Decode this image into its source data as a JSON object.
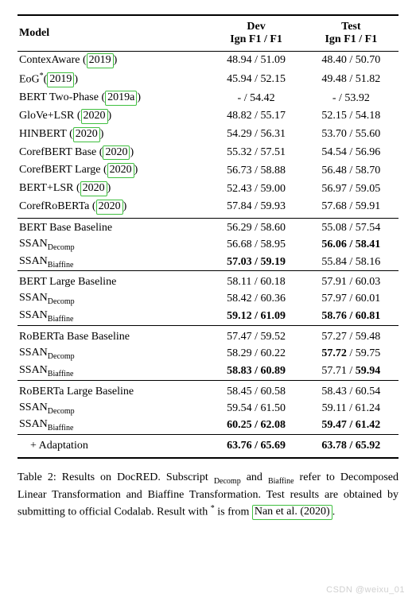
{
  "header": {
    "model": "Model",
    "dev_line1": "Dev",
    "dev_line2": "Ign F1 / F1",
    "test_line1": "Test",
    "test_line2": "Ign F1 / F1"
  },
  "section1": [
    {
      "model_pre": "ContexAware (",
      "ref": "2019",
      "model_post": ")",
      "dev": "48.94 / 51.09",
      "test": "48.40 / 50.70"
    },
    {
      "model_pre": "EoG",
      "sup": "*",
      "model_mid": "(",
      "ref": "2019",
      "model_post": ")",
      "dev": "45.94 / 52.15",
      "test": "49.48 / 51.82"
    },
    {
      "model_pre": "BERT Two-Phase (",
      "ref": "2019a",
      "model_post": ")",
      "dev": "-    / 54.42",
      "test": "-    / 53.92"
    },
    {
      "model_pre": "GloVe+LSR (",
      "ref": "2020",
      "model_post": ")",
      "dev": "48.82 / 55.17",
      "test": "52.15 / 54.18"
    },
    {
      "model_pre": "HINBERT (",
      "ref": "2020",
      "model_post": ")",
      "dev": "54.29 / 56.31",
      "test": "53.70 / 55.60"
    },
    {
      "model_pre": "CorefBERT Base (",
      "ref": "2020",
      "model_post": ")",
      "dev": "55.32 / 57.51",
      "test": "54.54 / 56.96"
    },
    {
      "model_pre": "CorefBERT Large (",
      "ref": "2020",
      "model_post": ")",
      "dev": "56.73 / 58.88",
      "test": "56.48 / 58.70"
    },
    {
      "model_pre": "BERT+LSR (",
      "ref": "2020",
      "model_post": ")",
      "dev": "52.43 / 59.00",
      "test": "56.97 / 59.05"
    },
    {
      "model_pre": "CorefRoBERTa (",
      "ref": "2020",
      "model_post": ")",
      "dev": "57.84 / 59.93",
      "test": "57.68 / 59.91"
    }
  ],
  "section2": [
    {
      "model": "BERT Base Baseline",
      "dev": "56.29 / 58.60",
      "test": "55.08 / 57.54"
    },
    {
      "model_pre": "SSAN",
      "sub": "Decomp",
      "dev": "56.68 / 58.95",
      "test_bold": "56.06 / 58.41"
    },
    {
      "model_pre": "SSAN",
      "sub": "Biaffine",
      "dev_bold": "57.03 / 59.19",
      "test": "55.84 / 58.16"
    }
  ],
  "section3": [
    {
      "model": "BERT Large Baseline",
      "dev": "58.11 / 60.18",
      "test": "57.91 / 60.03"
    },
    {
      "model_pre": "SSAN",
      "sub": "Decomp",
      "dev": "58.42 / 60.36",
      "test": "57.97 / 60.01"
    },
    {
      "model_pre": "SSAN",
      "sub": "Biaffine",
      "dev_bold": "59.12 / 61.09",
      "test_bold": "58.76 / 60.81"
    }
  ],
  "section4": [
    {
      "model": "RoBERTa Base Baseline",
      "dev": "57.47 / 59.52",
      "test": "57.27 / 59.48"
    },
    {
      "model_pre": "SSAN",
      "sub": "Decomp",
      "dev": "58.29 / 60.22",
      "test_pre_bold": "57.72",
      "test_post": " / 59.75"
    },
    {
      "model_pre": "SSAN",
      "sub": "Biaffine",
      "dev_bold": "58.83 / 60.89",
      "test_pre": "57.71 / ",
      "test_post_bold": "59.94"
    }
  ],
  "section5": [
    {
      "model": "RoBERTa Large Baseline",
      "dev": "58.45 / 60.58",
      "test": "58.43 / 60.54"
    },
    {
      "model_pre": "SSAN",
      "sub": "Decomp",
      "dev": "59.54 / 61.50",
      "test": "59.11 / 61.24"
    },
    {
      "model_pre": "SSAN",
      "sub": "Biaffine",
      "dev_bold": "60.25 / 62.08",
      "test_bold": "59.47 / 61.42"
    }
  ],
  "adaptation": {
    "label": "+ Adaptation",
    "dev": "63.76 / 65.69",
    "test": "63.78 / 65.92"
  },
  "caption": {
    "prefix": "Table 2: Results on DocRED. Subscript ",
    "sub1": "Decomp",
    "mid1": " and ",
    "sub2": "Biaffine",
    "mid2": " refer to Decomposed Linear Transformation and Biaffine Transformation. Test results are obtained by submitting to official Codalab. Result with ",
    "sup": "*",
    "mid3": " is from ",
    "ref": "Nan et al. (2020)",
    "end": "."
  },
  "watermark": "CSDN @weixu_01"
}
